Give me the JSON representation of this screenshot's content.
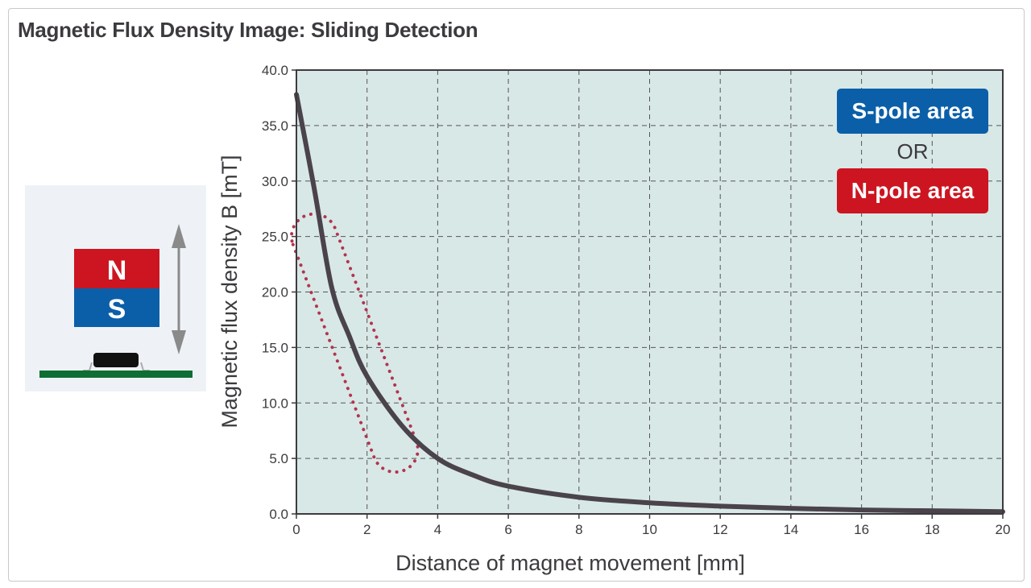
{
  "title": "Magnetic Flux Density Image: Sliding Detection",
  "illustration": {
    "north_label": "N",
    "south_label": "S"
  },
  "colors": {
    "plot_bg": "#d8e8e6",
    "curve": "#4a434b",
    "annotation": "#b3334f",
    "s_pole": "#0b5fa8",
    "n_pole": "#cc1520",
    "board": "#0f6e33"
  },
  "chart_data": {
    "type": "line",
    "xlabel": "Distance of magnet movement [mm]",
    "ylabel": "Magnetic flux density B [mT]",
    "xlim": [
      0,
      20
    ],
    "ylim": [
      0,
      40
    ],
    "grid": true,
    "x_ticks": [
      "0",
      "2",
      "4",
      "6",
      "8",
      "10",
      "12",
      "14",
      "16",
      "18",
      "20"
    ],
    "y_ticks": [
      "0.0",
      "5.0",
      "10.0",
      "15.0",
      "20.0",
      "25.0",
      "30.0",
      "35.0",
      "40.0"
    ],
    "series": [
      {
        "name": "B",
        "x": [
          0,
          0.5,
          1,
          1.5,
          2,
          3,
          4,
          5,
          6,
          8,
          10,
          12,
          14,
          16,
          18,
          20
        ],
        "y": [
          37.8,
          29.4,
          20.4,
          16.0,
          12.4,
          7.9,
          5.0,
          3.5,
          2.5,
          1.5,
          1.0,
          0.7,
          0.5,
          0.35,
          0.28,
          0.2
        ]
      }
    ],
    "legend": {
      "s_pole": "S-pole area",
      "or": "OR",
      "n_pole": "N-pole area",
      "placement": "top-right"
    },
    "annotation": {
      "type": "dotted-capsule",
      "from": [
        0.5,
        25
      ],
      "to": [
        2.8,
        5.8
      ]
    }
  }
}
